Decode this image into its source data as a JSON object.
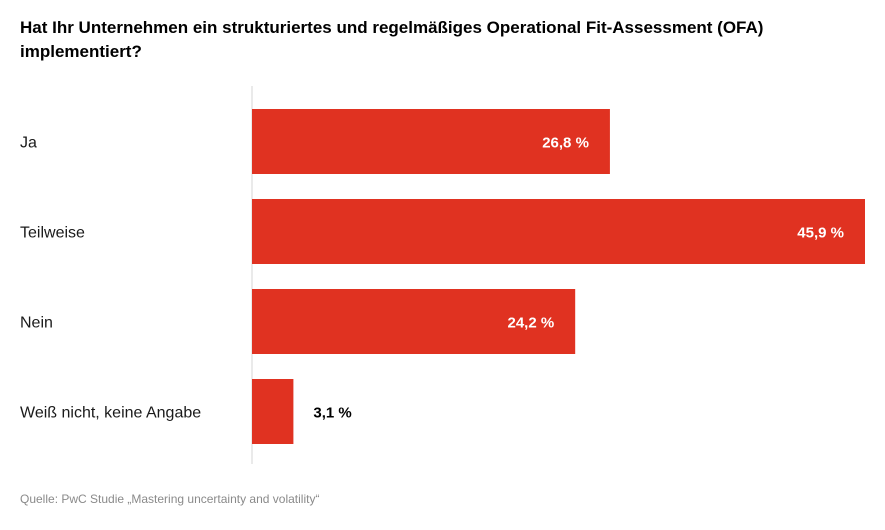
{
  "chart_data": {
    "type": "bar",
    "orientation": "horizontal",
    "title": "Hat Ihr Unternehmen ein strukturiertes und regelmäßiges Operational Fit-Assessment (OFA) implementiert?",
    "categories": [
      "Ja",
      "Teilweise",
      "Nein",
      "Weiß nicht, keine Angabe"
    ],
    "values": [
      26.8,
      45.9,
      24.2,
      3.1
    ],
    "value_labels": [
      "26,8 %",
      "45,9 %",
      "24,2 %",
      "3,1 %"
    ],
    "xlim": [
      0,
      45.9
    ],
    "grid": false,
    "bar_color": "#e03221",
    "label_color_inside": "#ffffff",
    "label_color_outside": "#000000"
  },
  "source": "Quelle: PwC Studie „Mastering uncertainty and volatility“"
}
